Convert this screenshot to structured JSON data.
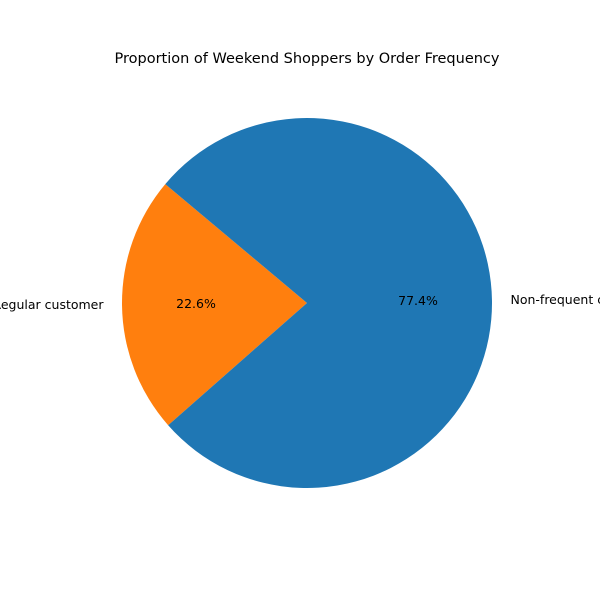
{
  "chart_data": {
    "type": "pie",
    "title": "Proportion of Weekend Shoppers by Order Frequency",
    "categories": [
      "Regular customer",
      "Non-frequent customer"
    ],
    "values": [
      22.6,
      77.4
    ],
    "percent_labels": [
      "22.6%",
      "77.4%"
    ],
    "colors": [
      "#ff7f0e",
      "#1f77b4"
    ],
    "start_angle_deg": 140,
    "direction": "counterclockwise",
    "legend": "none"
  }
}
